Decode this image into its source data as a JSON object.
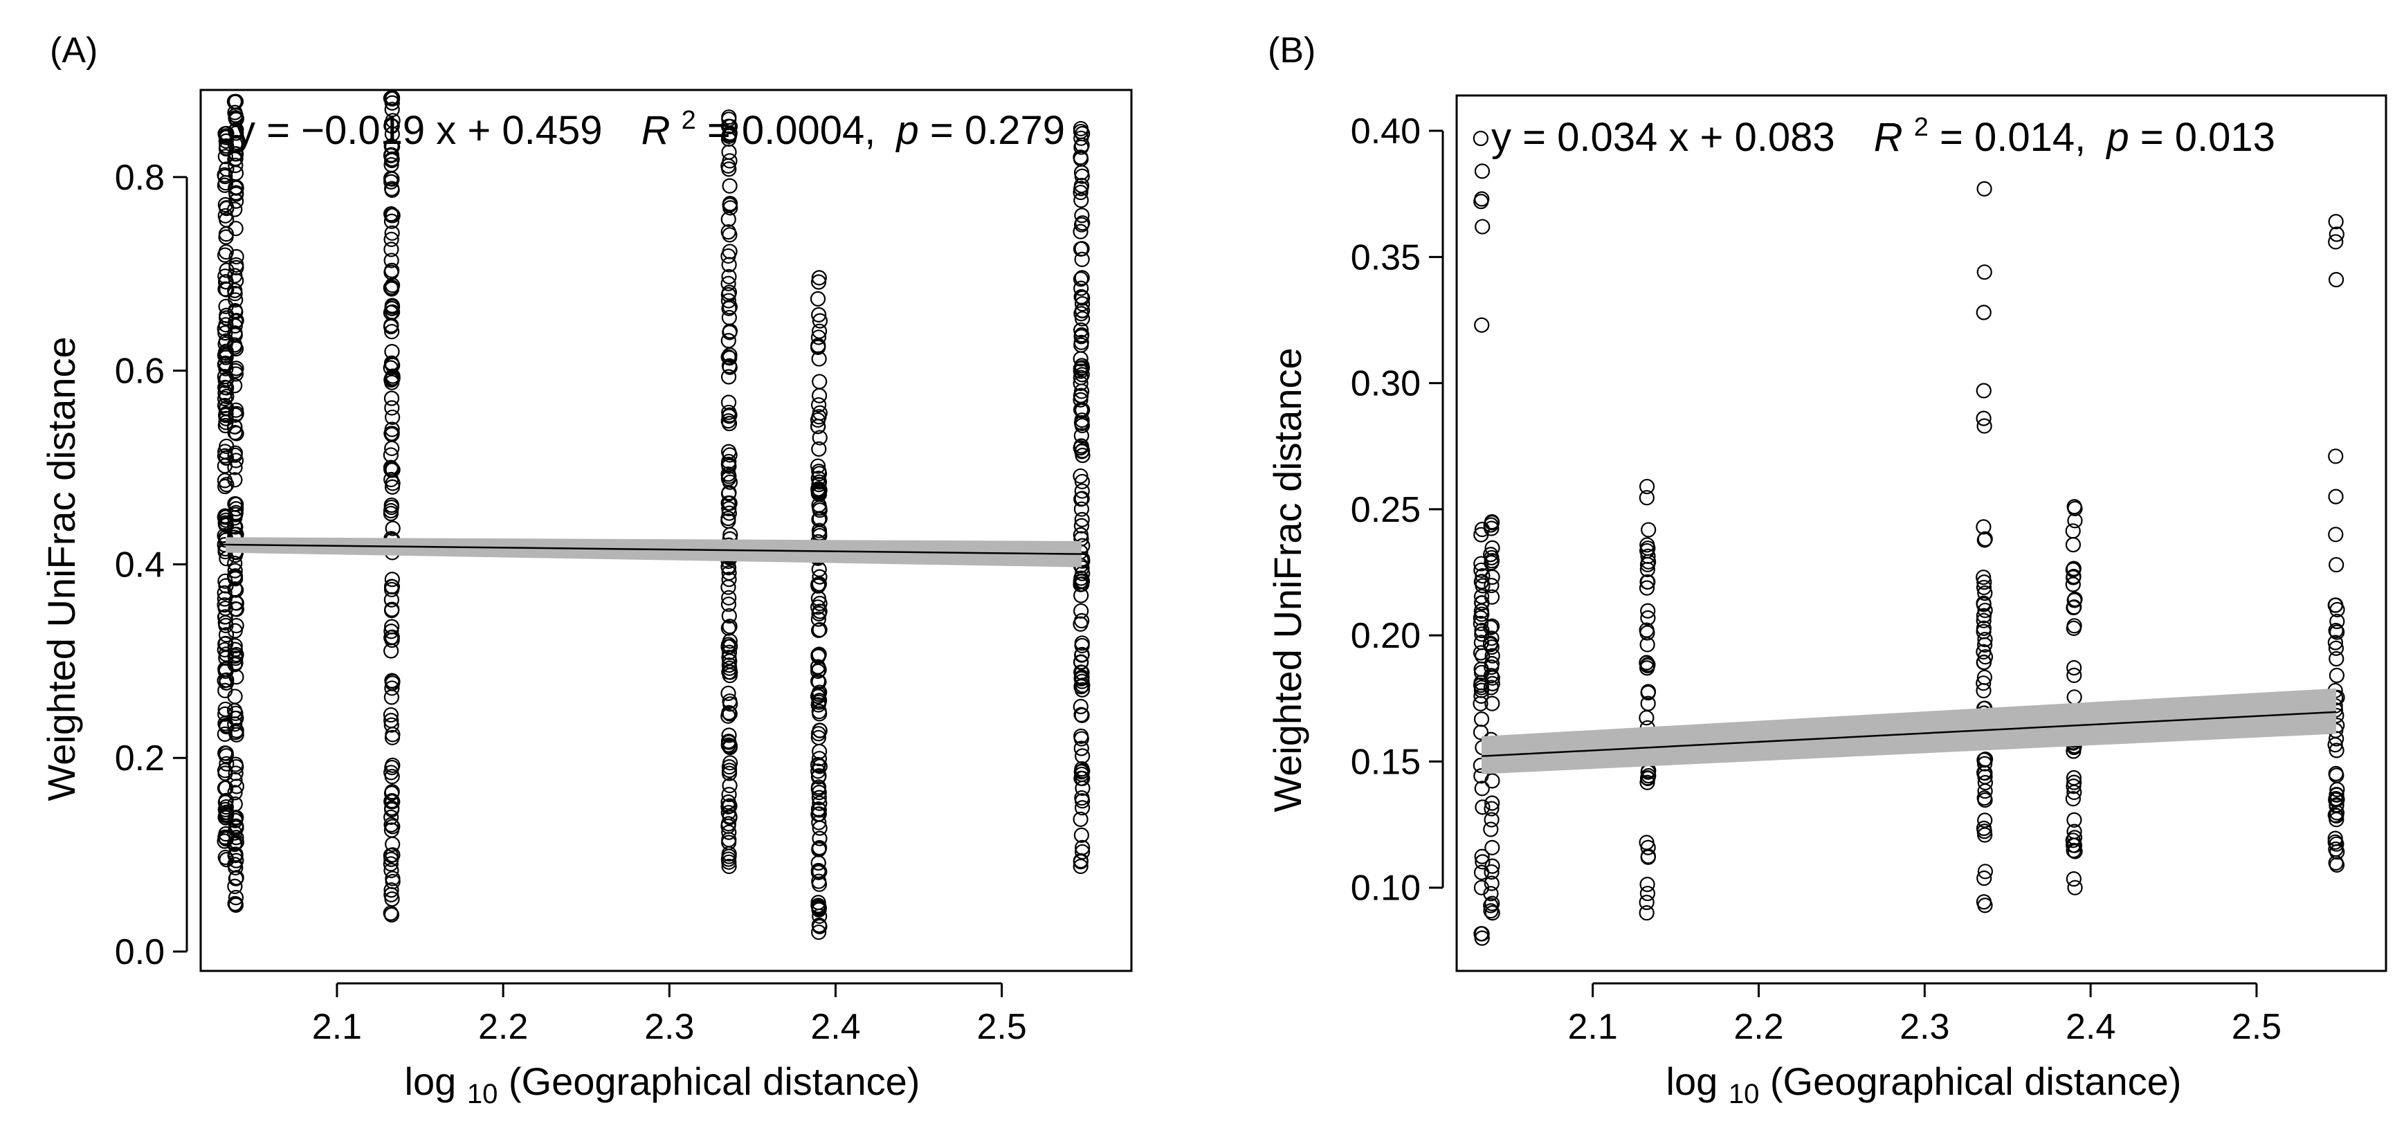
{
  "chart_data": [
    {
      "type": "scatter",
      "panel_label": "(A)",
      "xlabel_prefix": "log",
      "xlabel_sub": "10",
      "xlabel_suffix": "(Geographical distance)",
      "ylabel": "Weighted UniFrac distance",
      "xlim": [
        2.018,
        2.578
      ],
      "ylim": [
        -0.02,
        0.89
      ],
      "xticks": [
        2.1,
        2.2,
        2.3,
        2.4,
        2.5
      ],
      "xtick_labels": [
        "2.1",
        "2.2",
        "2.3",
        "2.4",
        "2.5"
      ],
      "yticks": [
        0.0,
        0.2,
        0.4,
        0.6,
        0.8
      ],
      "ytick_labels": [
        "0.0",
        "0.2",
        "0.4",
        "0.6",
        "0.8"
      ],
      "equation": {
        "formula": "y = −0.019 x + 0.459",
        "r2_symbol": "R",
        "r2_sup": "2",
        "r2_value": " = 0.0004,",
        "p_symbol": "p",
        "p_value": " = 0.279"
      },
      "fit": {
        "slope": -0.019,
        "intercept": 0.459,
        "x_range": [
          2.033,
          2.548
        ],
        "ci_start": [
          0.412,
          0.428
        ],
        "ci_end": [
          0.397,
          0.424
        ]
      },
      "clusters": [
        {
          "x": 2.033,
          "y_min": 0.095,
          "y_max": 0.845,
          "n": 140
        },
        {
          "x": 2.039,
          "y_min": 0.048,
          "y_max": 0.878,
          "n": 140
        },
        {
          "x": 2.133,
          "y_min": 0.038,
          "y_max": 0.882,
          "n": 130
        },
        {
          "x": 2.336,
          "y_min": 0.088,
          "y_max": 0.862,
          "n": 130
        },
        {
          "x": 2.39,
          "y_min": 0.02,
          "y_max": 0.696,
          "n": 120
        },
        {
          "x": 2.548,
          "y_min": 0.088,
          "y_max": 0.85,
          "n": 130
        }
      ]
    },
    {
      "type": "scatter",
      "panel_label": "(B)",
      "xlabel_prefix": "log",
      "xlabel_sub": "10",
      "xlabel_suffix": "(Geographical distance)",
      "ylabel": "Weighted UniFrac distance",
      "xlim": [
        2.018,
        2.578
      ],
      "ylim": [
        0.067,
        0.414
      ],
      "xticks": [
        2.1,
        2.2,
        2.3,
        2.4,
        2.5
      ],
      "xtick_labels": [
        "2.1",
        "2.2",
        "2.3",
        "2.4",
        "2.5"
      ],
      "yticks": [
        0.1,
        0.15,
        0.2,
        0.25,
        0.3,
        0.35,
        0.4
      ],
      "ytick_labels": [
        "0.10",
        "0.15",
        "0.20",
        "0.25",
        "0.30",
        "0.35",
        "0.40"
      ],
      "equation": {
        "formula": "y = 0.034 x + 0.083",
        "r2_symbol": "R",
        "r2_sup": "2",
        "r2_value": " = 0.014,",
        "p_symbol": "p",
        "p_value": " = 0.013"
      },
      "fit": {
        "slope": 0.034,
        "intercept": 0.083,
        "x_range": [
          2.033,
          2.548
        ],
        "ci_start": [
          0.145,
          0.16
        ],
        "ci_end": [
          0.161,
          0.179
        ]
      },
      "clusters": [
        {
          "x": 2.033,
          "y_min": 0.08,
          "y_max": 0.242,
          "n": 40,
          "extra": [
            0.397,
            0.384,
            0.373,
            0.372,
            0.362,
            0.323
          ]
        },
        {
          "x": 2.039,
          "y_min": 0.09,
          "y_max": 0.245,
          "n": 40,
          "extra": []
        },
        {
          "x": 2.133,
          "y_min": 0.09,
          "y_max": 0.259,
          "n": 45,
          "extra": []
        },
        {
          "x": 2.336,
          "y_min": 0.093,
          "y_max": 0.243,
          "n": 45,
          "extra": [
            0.377,
            0.344,
            0.328,
            0.297,
            0.286,
            0.283
          ]
        },
        {
          "x": 2.39,
          "y_min": 0.1,
          "y_max": 0.251,
          "n": 40,
          "extra": []
        },
        {
          "x": 2.548,
          "y_min": 0.109,
          "y_max": 0.212,
          "n": 40,
          "extra": [
            0.364,
            0.359,
            0.356,
            0.341,
            0.271,
            0.255,
            0.24,
            0.228
          ]
        }
      ]
    }
  ]
}
